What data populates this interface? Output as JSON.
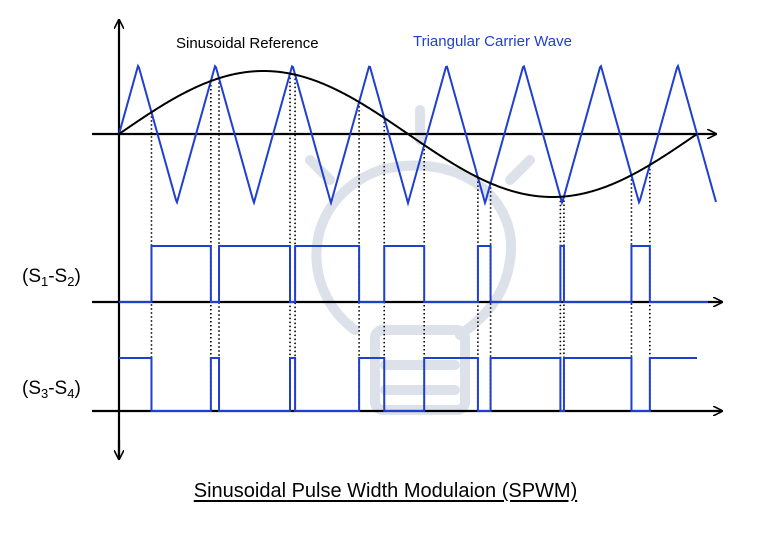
{
  "labels": {
    "sine_ref": "Sinusoidal  Reference",
    "carrier": "Triangular Carrier Wave",
    "s12": {
      "prefix": "(S",
      "sub1": "1",
      "dash": "-S",
      "sub2": "2",
      "suffix": ")"
    },
    "s34": {
      "prefix": "(S",
      "sub1": "3",
      "dash": "-S",
      "sub2": "4",
      "suffix": ")"
    }
  },
  "caption": "Sinusoidal Pulse Width Modulaion (SPWM)",
  "colors": {
    "carrier": "#1f3fd0",
    "sine": "#000000",
    "pulse": "#1f3fd0",
    "axis": "#000000",
    "watermark": "#dde1ea"
  },
  "icons": {
    "watermark": "lightbulb-watermark-icon"
  }
}
